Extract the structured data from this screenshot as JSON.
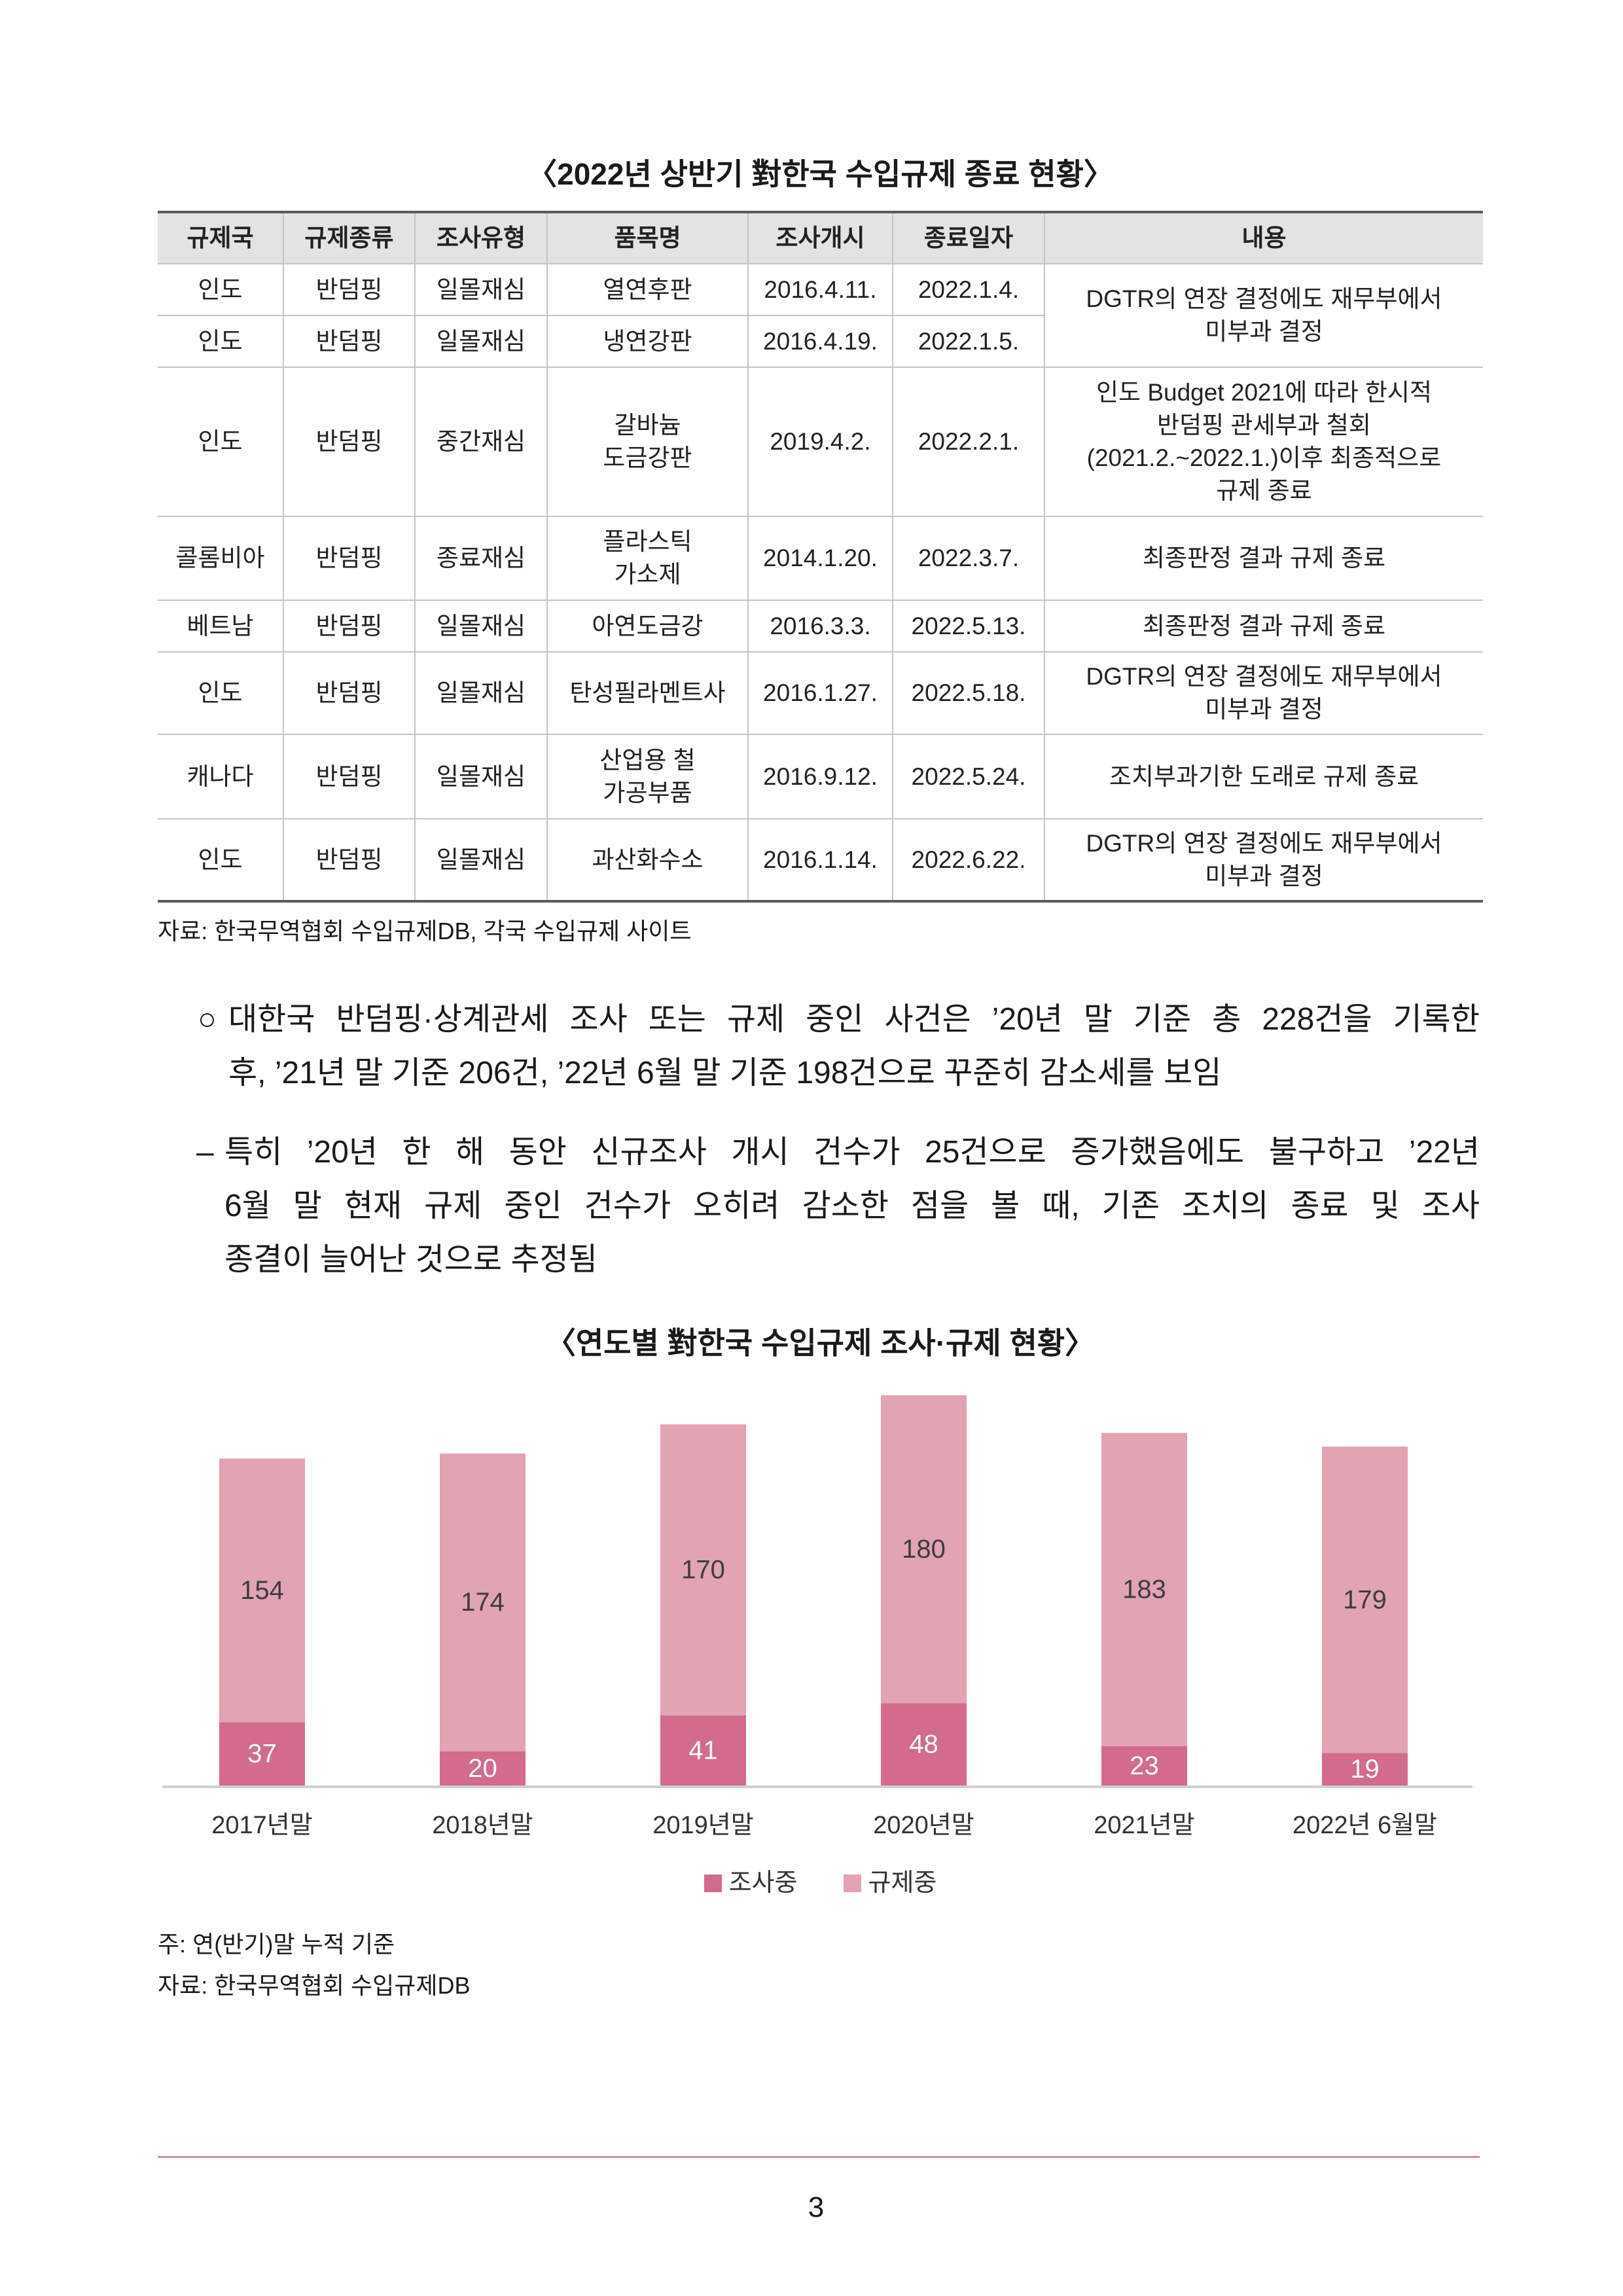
{
  "style": {
    "rule_color": "#d98aa0",
    "table_header_bg": "#e3e3e3"
  },
  "table_title": "〈2022년 상반기 對한국 수입규제 종료 현황〉",
  "table": {
    "headers": [
      "규제국",
      "규제종류",
      "조사유형",
      "품목명",
      "조사개시",
      "종료일자",
      "내용"
    ],
    "rows": [
      {
        "country": "인도",
        "measure": "반덤핑",
        "review": "일몰재심",
        "product": "열연후판",
        "start": "2016.4.11.",
        "end": "2022.1.4.",
        "details": "DGTR의 연장 결정에도 재무부에서\n미부과 결정"
      },
      {
        "country": "인도",
        "measure": "반덤핑",
        "review": "일몰재심",
        "product": "냉연강판",
        "start": "2016.4.19.",
        "end": "2022.1.5."
      },
      {
        "country": "인도",
        "measure": "반덤핑",
        "review": "중간재심",
        "product": "갈바늄\n도금강판",
        "start": "2019.4.2.",
        "end": "2022.2.1.",
        "details": "인도 Budget 2021에 따라 한시적\n반덤핑 관세부과 철회\n(2021.2.~2022.1.)이후 최종적으로\n규제 종료"
      },
      {
        "country": "콜롬비아",
        "measure": "반덤핑",
        "review": "종료재심",
        "product": "플라스틱\n가소제",
        "start": "2014.1.20.",
        "end": "2022.3.7.",
        "details": "최종판정 결과 규제 종료"
      },
      {
        "country": "베트남",
        "measure": "반덤핑",
        "review": "일몰재심",
        "product": "아연도금강",
        "start": "2016.3.3.",
        "end": "2022.5.13.",
        "details": "최종판정 결과 규제 종료"
      },
      {
        "country": "인도",
        "measure": "반덤핑",
        "review": "일몰재심",
        "product": "탄성필라멘트사",
        "start": "2016.1.27.",
        "end": "2022.5.18.",
        "details": "DGTR의 연장 결정에도 재무부에서\n미부과 결정"
      },
      {
        "country": "캐나다",
        "measure": "반덤핑",
        "review": "일몰재심",
        "product": "산업용 철\n가공부품",
        "start": "2016.9.12.",
        "end": "2022.5.24.",
        "details": "조치부과기한 도래로 규제 종료"
      },
      {
        "country": "인도",
        "measure": "반덤핑",
        "review": "일몰재심",
        "product": "과산화수소",
        "start": "2016.1.14.",
        "end": "2022.6.22.",
        "details": "DGTR의 연장 결정에도 재무부에서\n미부과 결정"
      }
    ]
  },
  "table_source": "자료: 한국무역협회 수입규제DB, 각국 수입규제 사이트",
  "bullet": {
    "symbol": "○",
    "lines": [
      "대한국 반덤핑·상계관세 조사 또는 규제 중인 사건은 ’20년 말 기준 총 228건을 기록한",
      "후, ’21년 말 기준 206건, ’22년 6월 말 기준 198건으로 꾸준히 감소세를 보임"
    ]
  },
  "dash": {
    "symbol": "–",
    "lines": [
      "특히 ’20년 한 해 동안 신규조사 개시 건수가 25건으로 증가했음에도 불구하고 ’22년",
      "6월 말 현재 규제 중인 건수가 오히려 감소한 점을 볼 때, 기존 조치의 종료 및 조사",
      "종결이 늘어난 것으로 추정됨"
    ]
  },
  "chart_data": {
    "type": "bar",
    "stacked": true,
    "title": "〈연도별 對한국 수입규제 조사·규제 현황〉",
    "categories": [
      "2017년말",
      "2018년말",
      "2019년말",
      "2020년말",
      "2021년말",
      "2022년 6월말"
    ],
    "series": [
      {
        "name": "조사중",
        "values": [
          37,
          20,
          41,
          48,
          23,
          19
        ],
        "color": "#d26b8c",
        "label_color": "#ffffff"
      },
      {
        "name": "규제중",
        "values": [
          154,
          174,
          170,
          180,
          183,
          179
        ],
        "color": "#e2a3b3",
        "label_color": "#3d3d3d"
      }
    ],
    "legend": "bottom-center",
    "grid": false,
    "data_labels": true
  },
  "chart_notes": {
    "note": "주: 연(반기)말 누적 기준",
    "source": "자료: 한국무역협회 수입규제DB"
  },
  "page_number": "3"
}
